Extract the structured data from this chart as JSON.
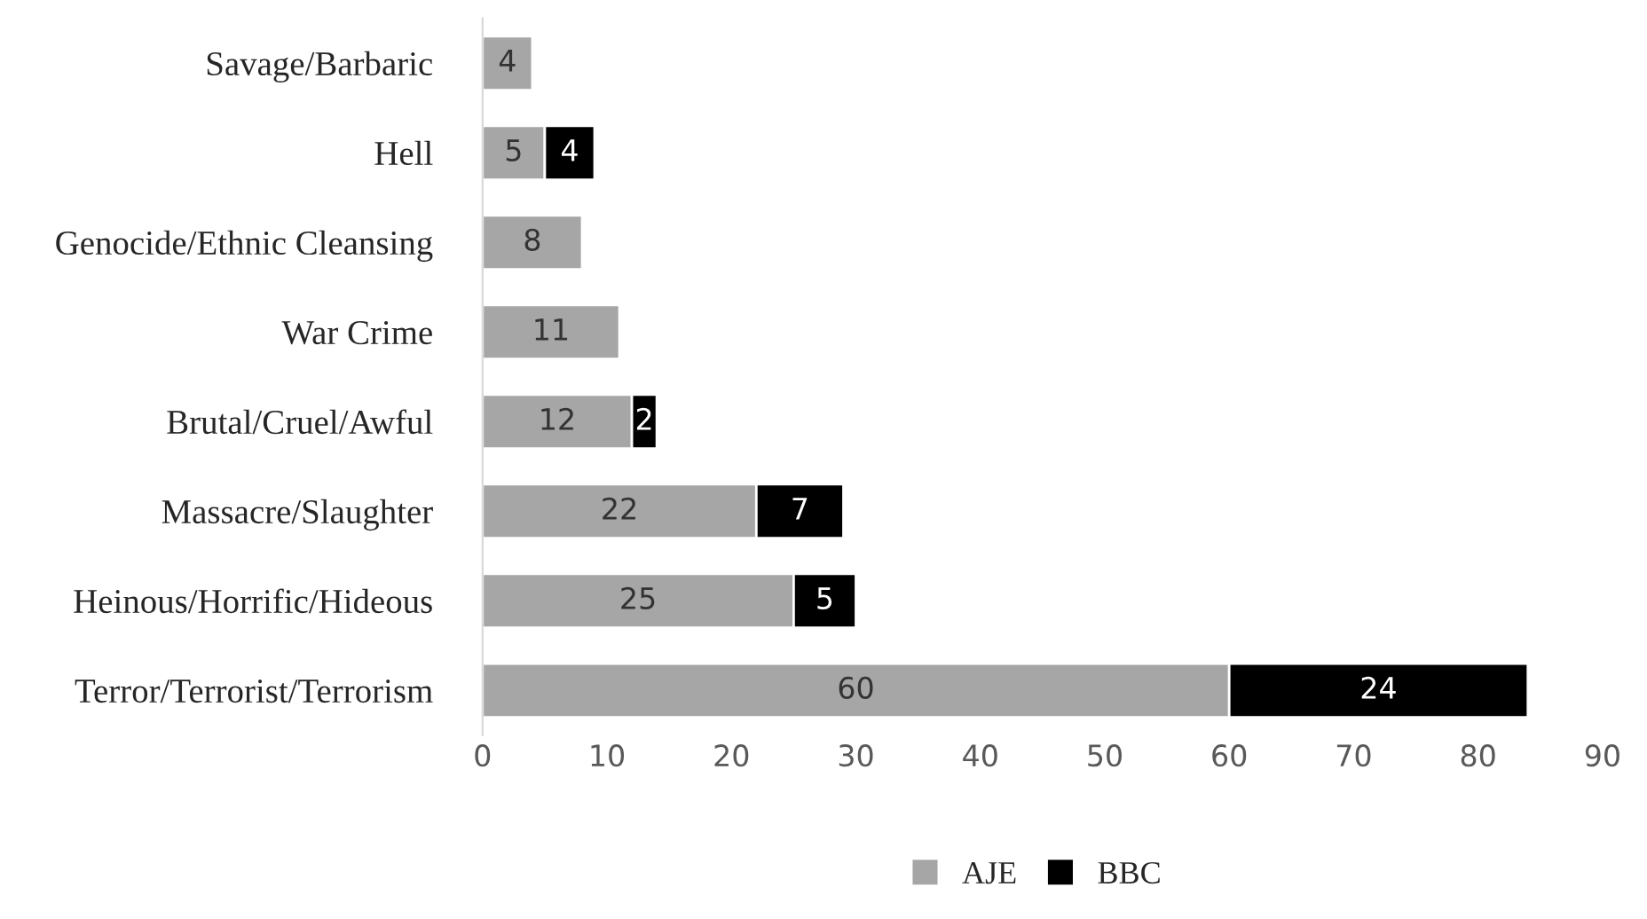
{
  "chart_data": {
    "type": "bar",
    "orientation": "horizontal",
    "stacked": true,
    "categories": [
      "Savage/Barbaric",
      "Hell",
      "Genocide/Ethnic Cleansing",
      "War Crime",
      "Brutal/Cruel/Awful",
      "Massacre/Slaughter",
      "Heinous/Horrific/Hideous",
      "Terror/Terrorist/Terrorism"
    ],
    "series": [
      {
        "name": "AJE",
        "color": "#a6a6a6",
        "values": [
          4,
          5,
          8,
          11,
          12,
          22,
          25,
          60
        ]
      },
      {
        "name": "BBC",
        "color": "#000000",
        "values": [
          null,
          4,
          null,
          null,
          2,
          7,
          5,
          24
        ]
      }
    ],
    "xlim": [
      0,
      90
    ],
    "xticks": [
      0,
      10,
      20,
      30,
      40,
      50,
      60,
      70,
      80,
      90
    ],
    "data_labels": true,
    "grid": false,
    "legend": "bottom"
  }
}
